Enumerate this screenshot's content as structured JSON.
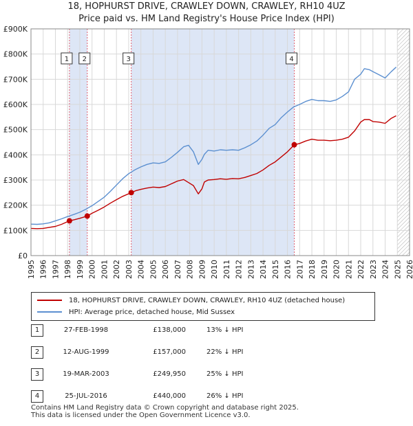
{
  "title_line1": "18, HOPHURST DRIVE, CRAWLEY DOWN, CRAWLEY, RH10 4UZ",
  "title_line2": "Price paid vs. HM Land Registry's House Price Index (HPI)",
  "chart_data": {
    "type": "line",
    "title": "18, HOPHURST DRIVE, CRAWLEY DOWN, CRAWLEY, RH10 4UZ — Price paid vs. HM Land Registry's House Price Index (HPI)",
    "xlabel": "",
    "ylabel": "",
    "xlim": [
      1995,
      2026
    ],
    "ylim": [
      0,
      900000
    ],
    "x_ticks": [
      1995,
      1996,
      1997,
      1998,
      1999,
      2000,
      2001,
      2002,
      2003,
      2004,
      2005,
      2006,
      2007,
      2008,
      2009,
      2010,
      2011,
      2012,
      2013,
      2014,
      2015,
      2016,
      2017,
      2018,
      2019,
      2020,
      2021,
      2022,
      2023,
      2024,
      2025,
      2026
    ],
    "y_ticks": [
      {
        "value": 0,
        "label": "£0"
      },
      {
        "value": 100000,
        "label": "£100K"
      },
      {
        "value": 200000,
        "label": "£200K"
      },
      {
        "value": 300000,
        "label": "£300K"
      },
      {
        "value": 400000,
        "label": "£400K"
      },
      {
        "value": 500000,
        "label": "£500K"
      },
      {
        "value": 600000,
        "label": "£600K"
      },
      {
        "value": 700000,
        "label": "£700K"
      },
      {
        "value": 800000,
        "label": "£800K"
      },
      {
        "value": 900000,
        "label": "£900K"
      }
    ],
    "grid": true,
    "colors": {
      "property": "#c00000",
      "hpi": "#5b8fd0",
      "shade": "#dde6f6",
      "vline": "#e06070"
    },
    "series": [
      {
        "name": "18, HOPHURST DRIVE, CRAWLEY DOWN, CRAWLEY, RH10 4UZ (detached house)",
        "x": [
          1995.0,
          1995.5,
          1996.0,
          1996.5,
          1997.0,
          1997.5,
          1998.15,
          1998.6,
          1999.0,
          1999.61,
          2000.0,
          2000.5,
          2001.0,
          2001.5,
          2002.0,
          2002.5,
          2003.21,
          2003.6,
          2004.0,
          2004.5,
          2005.0,
          2005.5,
          2006.0,
          2006.5,
          2007.0,
          2007.5,
          2007.9,
          2008.3,
          2008.7,
          2009.0,
          2009.2,
          2009.5,
          2010.0,
          2010.5,
          2011.0,
          2011.5,
          2012.0,
          2012.5,
          2013.0,
          2013.5,
          2014.0,
          2014.5,
          2015.0,
          2015.5,
          2016.0,
          2016.56,
          2017.0,
          2017.5,
          2018.0,
          2018.5,
          2019.0,
          2019.5,
          2020.0,
          2020.5,
          2021.0,
          2021.5,
          2022.0,
          2022.3,
          2022.7,
          2023.0,
          2023.5,
          2024.0,
          2024.5,
          2024.9
        ],
        "y": [
          108000,
          107000,
          108000,
          112000,
          116000,
          124000,
          138000,
          143000,
          148000,
          157000,
          168000,
          180000,
          193000,
          208000,
          222000,
          235000,
          249950,
          258000,
          263000,
          268000,
          272000,
          270000,
          274000,
          285000,
          296000,
          302000,
          290000,
          278000,
          245000,
          265000,
          292000,
          300000,
          302000,
          305000,
          303000,
          306000,
          305000,
          310000,
          318000,
          326000,
          340000,
          358000,
          372000,
          392000,
          412000,
          440000,
          445000,
          455000,
          462000,
          458000,
          458000,
          456000,
          458000,
          462000,
          470000,
          495000,
          530000,
          540000,
          540000,
          532000,
          530000,
          525000,
          545000,
          555000
        ]
      },
      {
        "name": "HPI: Average price, detached house, Mid Sussex",
        "x": [
          1995.0,
          1995.5,
          1996.0,
          1996.5,
          1997.0,
          1997.5,
          1998.0,
          1998.5,
          1999.0,
          1999.5,
          2000.0,
          2000.5,
          2001.0,
          2001.5,
          2002.0,
          2002.5,
          2003.0,
          2003.5,
          2004.0,
          2004.5,
          2005.0,
          2005.5,
          2006.0,
          2006.5,
          2007.0,
          2007.5,
          2007.9,
          2008.3,
          2008.7,
          2009.0,
          2009.2,
          2009.5,
          2010.0,
          2010.5,
          2011.0,
          2011.5,
          2012.0,
          2012.5,
          2013.0,
          2013.5,
          2014.0,
          2014.5,
          2015.0,
          2015.5,
          2016.0,
          2016.5,
          2017.0,
          2017.5,
          2018.0,
          2018.5,
          2019.0,
          2019.5,
          2020.0,
          2020.5,
          2021.0,
          2021.5,
          2022.0,
          2022.3,
          2022.7,
          2023.0,
          2023.5,
          2024.0,
          2024.5,
          2024.9
        ],
        "y": [
          125000,
          124000,
          126000,
          130000,
          138000,
          146000,
          155000,
          163000,
          172000,
          184000,
          198000,
          215000,
          232000,
          255000,
          280000,
          305000,
          325000,
          340000,
          352000,
          362000,
          368000,
          366000,
          372000,
          390000,
          410000,
          432000,
          438000,
          412000,
          362000,
          382000,
          402000,
          418000,
          415000,
          420000,
          418000,
          420000,
          418000,
          428000,
          440000,
          455000,
          478000,
          505000,
          520000,
          548000,
          570000,
          590000,
          600000,
          612000,
          620000,
          615000,
          615000,
          612000,
          618000,
          632000,
          650000,
          700000,
          720000,
          742000,
          738000,
          730000,
          718000,
          705000,
          730000,
          748000
        ]
      }
    ],
    "shaded_regions": [
      [
        1998.15,
        1999.61
      ],
      [
        2003.21,
        2016.56
      ]
    ],
    "markers": [
      {
        "label": "1",
        "x": 1998.15,
        "y": 138000
      },
      {
        "label": "2",
        "x": 1999.61,
        "y": 157000
      },
      {
        "label": "3",
        "x": 2003.21,
        "y": 249950
      },
      {
        "label": "4",
        "x": 2016.56,
        "y": 440000
      }
    ],
    "forecast_from": 2025.0
  },
  "legend": {
    "property_label": "18, HOPHURST DRIVE, CRAWLEY DOWN, CRAWLEY, RH10 4UZ (detached house)",
    "hpi_label": "HPI: Average price, detached house, Mid Sussex"
  },
  "sales": [
    {
      "num": "1",
      "date": "27-FEB-1998",
      "price": "£138,000",
      "diff": "13% ↓ HPI"
    },
    {
      "num": "2",
      "date": "12-AUG-1999",
      "price": "£157,000",
      "diff": "22% ↓ HPI"
    },
    {
      "num": "3",
      "date": "19-MAR-2003",
      "price": "£249,950",
      "diff": "25% ↓ HPI"
    },
    {
      "num": "4",
      "date": "25-JUL-2016",
      "price": "£440,000",
      "diff": "26% ↓ HPI"
    }
  ],
  "footer_line1": "Contains HM Land Registry data © Crown copyright and database right 2025.",
  "footer_line2": "This data is licensed under the Open Government Licence v3.0."
}
